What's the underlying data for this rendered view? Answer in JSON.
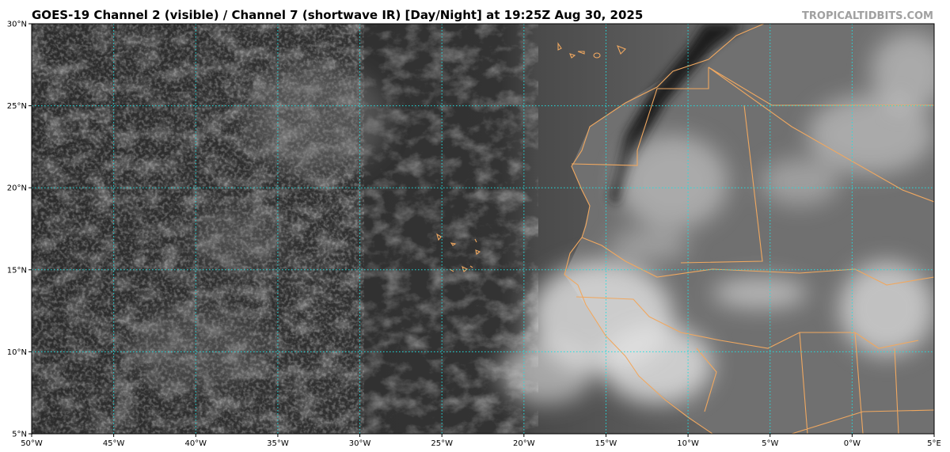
{
  "map": {
    "title": "GOES-19 Channel 2 (visible) / Channel 7 (shortwave IR) [Day/Night] at 19:25Z Aug 30, 2025",
    "credit": "TROPICALTIDBITS.COM",
    "lon_range": [
      -50,
      5
    ],
    "lat_range": [
      5,
      30
    ],
    "lon_ticks": [
      {
        "value": -50,
        "label": "50°W"
      },
      {
        "value": -45,
        "label": "45°W"
      },
      {
        "value": -40,
        "label": "40°W"
      },
      {
        "value": -35,
        "label": "35°W"
      },
      {
        "value": -30,
        "label": "30°W"
      },
      {
        "value": -25,
        "label": "25°W"
      },
      {
        "value": -20,
        "label": "20°W"
      },
      {
        "value": -15,
        "label": "15°W"
      },
      {
        "value": -10,
        "label": "10°W"
      },
      {
        "value": -5,
        "label": "5°W"
      },
      {
        "value": 0,
        "label": "0°W"
      },
      {
        "value": 5,
        "label": "5°E"
      }
    ],
    "lat_ticks": [
      {
        "value": 5,
        "label": "5°N"
      },
      {
        "value": 10,
        "label": "10°N"
      },
      {
        "value": 15,
        "label": "15°N"
      },
      {
        "value": 20,
        "label": "20°N"
      },
      {
        "value": 25,
        "label": "25°N"
      },
      {
        "value": 30,
        "label": "30°N"
      }
    ]
  }
}
